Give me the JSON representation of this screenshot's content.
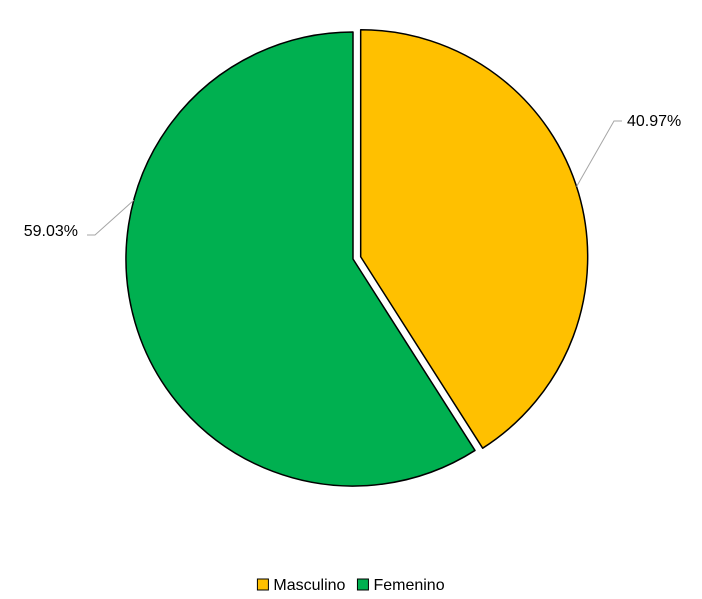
{
  "chart_data": {
    "type": "pie",
    "title": "",
    "slices": [
      {
        "name": "Masculino",
        "value": 40.97,
        "label": "40.97%",
        "color": "#FFC000",
        "exploded": true
      },
      {
        "name": "Femenino",
        "value": 59.03,
        "label": "59.03%",
        "color": "#00B050",
        "exploded": false
      }
    ],
    "start_angle": "12 o'clock",
    "direction": "clockwise",
    "legend": {
      "position": "bottom",
      "items": [
        "Masculino",
        "Femenino"
      ]
    },
    "edge_color": "#000000",
    "leader_line_color": "#A6A6A6"
  }
}
